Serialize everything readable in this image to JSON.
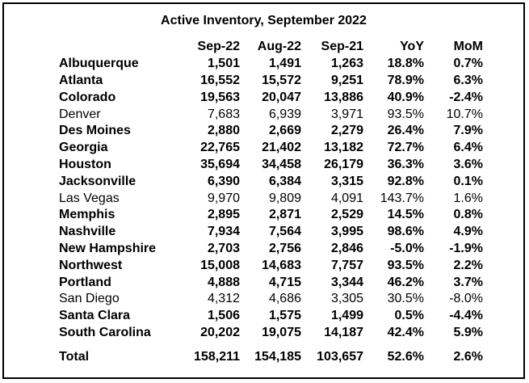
{
  "title": "Active Inventory, September 2022",
  "headers": [
    "",
    "Sep-22",
    "Aug-22",
    "Sep-21",
    "YoY",
    "MoM"
  ],
  "rows": [
    {
      "city": "Albuquerque",
      "sep22": "1,501",
      "aug22": "1,491",
      "sep21": "1,263",
      "yoy": "18.8%",
      "mom": "0.7%",
      "bold": true
    },
    {
      "city": "Atlanta",
      "sep22": "16,552",
      "aug22": "15,572",
      "sep21": "9,251",
      "yoy": "78.9%",
      "mom": "6.3%",
      "bold": true
    },
    {
      "city": "Colorado",
      "sep22": "19,563",
      "aug22": "20,047",
      "sep21": "13,886",
      "yoy": "40.9%",
      "mom": "-2.4%",
      "bold": true
    },
    {
      "city": "Denver",
      "sep22": "7,683",
      "aug22": "6,939",
      "sep21": "3,971",
      "yoy": "93.5%",
      "mom": "10.7%",
      "bold": false
    },
    {
      "city": "Des Moines",
      "sep22": "2,880",
      "aug22": "2,669",
      "sep21": "2,279",
      "yoy": "26.4%",
      "mom": "7.9%",
      "bold": true
    },
    {
      "city": "Georgia",
      "sep22": "22,765",
      "aug22": "21,402",
      "sep21": "13,182",
      "yoy": "72.7%",
      "mom": "6.4%",
      "bold": true
    },
    {
      "city": "Houston",
      "sep22": "35,694",
      "aug22": "34,458",
      "sep21": "26,179",
      "yoy": "36.3%",
      "mom": "3.6%",
      "bold": true
    },
    {
      "city": "Jacksonville",
      "sep22": "6,390",
      "aug22": "6,384",
      "sep21": "3,315",
      "yoy": "92.8%",
      "mom": "0.1%",
      "bold": true
    },
    {
      "city": "Las Vegas",
      "sep22": "9,970",
      "aug22": "9,809",
      "sep21": "4,091",
      "yoy": "143.7%",
      "mom": "1.6%",
      "bold": false
    },
    {
      "city": "Memphis",
      "sep22": "2,895",
      "aug22": "2,871",
      "sep21": "2,529",
      "yoy": "14.5%",
      "mom": "0.8%",
      "bold": true
    },
    {
      "city": "Nashville",
      "sep22": "7,934",
      "aug22": "7,564",
      "sep21": "3,995",
      "yoy": "98.6%",
      "mom": "4.9%",
      "bold": true
    },
    {
      "city": "New Hampshire",
      "sep22": "2,703",
      "aug22": "2,756",
      "sep21": "2,846",
      "yoy": "-5.0%",
      "mom": "-1.9%",
      "bold": true
    },
    {
      "city": "Northwest",
      "sep22": "15,008",
      "aug22": "14,683",
      "sep21": "7,757",
      "yoy": "93.5%",
      "mom": "2.2%",
      "bold": true
    },
    {
      "city": "Portland",
      "sep22": "4,888",
      "aug22": "4,715",
      "sep21": "3,344",
      "yoy": "46.2%",
      "mom": "3.7%",
      "bold": true
    },
    {
      "city": "San Diego",
      "sep22": "4,312",
      "aug22": "4,686",
      "sep21": "3,305",
      "yoy": "30.5%",
      "mom": "-8.0%",
      "bold": false
    },
    {
      "city": "Santa Clara",
      "sep22": "1,506",
      "aug22": "1,575",
      "sep21": "1,499",
      "yoy": "0.5%",
      "mom": "-4.4%",
      "bold": true
    },
    {
      "city": "South Carolina",
      "sep22": "20,202",
      "aug22": "19,075",
      "sep21": "14,187",
      "yoy": "42.4%",
      "mom": "5.9%",
      "bold": true
    }
  ],
  "total": {
    "city": "Total",
    "sep22": "158,211",
    "aug22": "154,185",
    "sep21": "103,657",
    "yoy": "52.6%",
    "mom": "2.6%"
  }
}
